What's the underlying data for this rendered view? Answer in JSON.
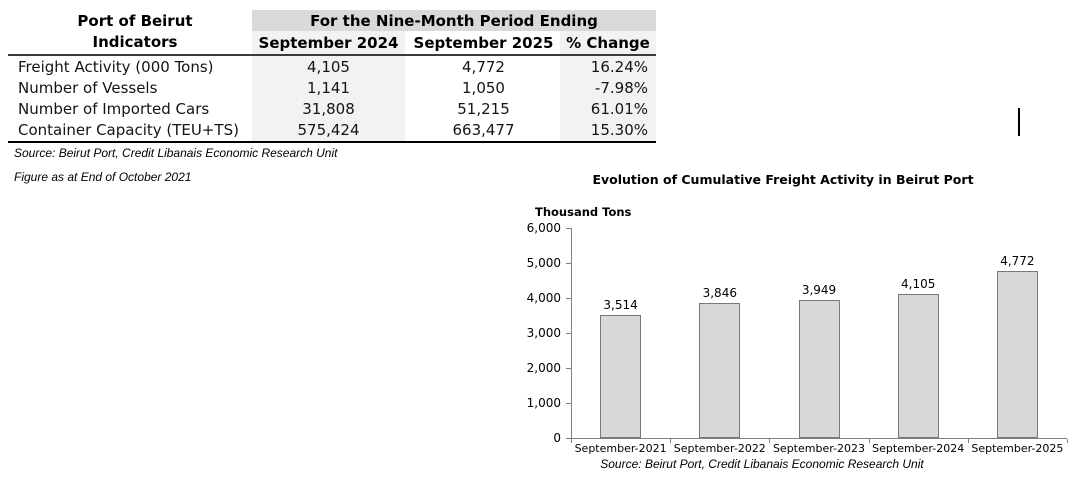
{
  "table": {
    "row_header_line1": "Port of Beirut",
    "row_header_line2": "Indicators",
    "span_header": "For the Nine-Month Period Ending",
    "columns": [
      "September 2024",
      "September 2025",
      "% Change"
    ],
    "rows": [
      {
        "label": "Freight Activity (000 Tons)",
        "sep2024": "4,105",
        "sep2025": "4,772",
        "change": "16.24%"
      },
      {
        "label": "Number of Vessels",
        "sep2024": "1,141",
        "sep2025": "1,050",
        "change": "-7.98%"
      },
      {
        "label": "Number of Imported Cars",
        "sep2024": "31,808",
        "sep2025": "51,215",
        "change": "61.01%"
      },
      {
        "label": "Container Capacity (TEU+TS)",
        "sep2024": "575,424",
        "sep2025": "663,477",
        "change": "15.30%"
      }
    ],
    "source": "Source: Beirut Port, Credit Libanais Economic Research Unit",
    "figure_note": "Figure as at End of October 2021",
    "header_bg": "#d9d9d9",
    "column_bg": "#f2f2f2"
  },
  "chart_data": {
    "type": "bar",
    "title": "Evolution of Cumulative Freight Activity in Beirut Port",
    "ylabel": "Thousand Tons",
    "xlabel": "",
    "categories": [
      "September-2021",
      "September-2022",
      "September-2023",
      "September-2024",
      "September-2025"
    ],
    "values": [
      3514,
      3846,
      3949,
      4105,
      4772
    ],
    "ylim": [
      0,
      6000
    ],
    "ytick_step": 1000,
    "grid": "off",
    "legend": "none",
    "bar_fill": "#d8d8d8",
    "bar_border": "#787878",
    "axis_color": "#808080",
    "source": "Source: Beirut Port, Credit Libanais Economic Research Unit"
  }
}
